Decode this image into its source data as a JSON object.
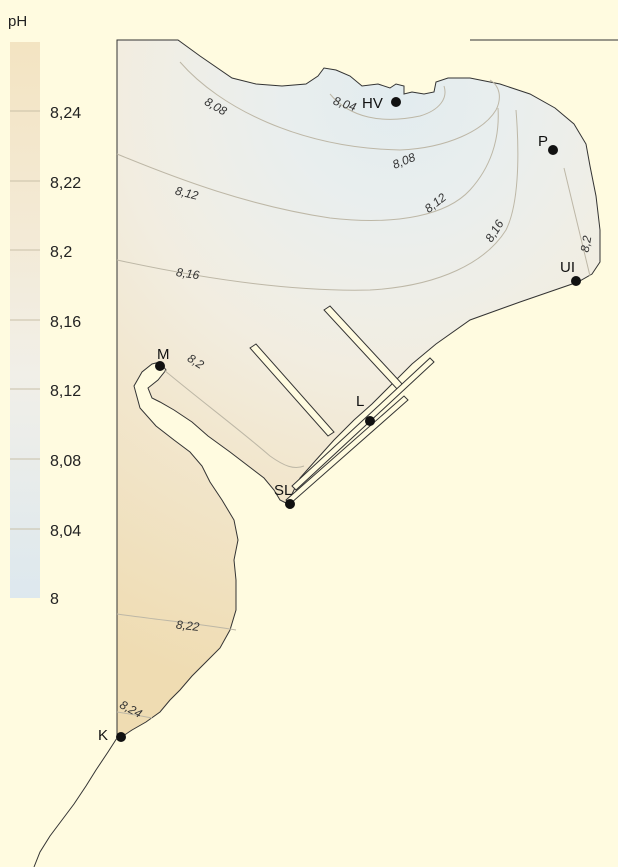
{
  "legend": {
    "title": "pH",
    "ticks": [
      "8,24",
      "8,22",
      "8,2",
      "8,16",
      "8,12",
      "8,08",
      "8,04",
      "8"
    ],
    "colors": {
      "top": "#f3e6c6",
      "bottom": "#dfe9ee"
    }
  },
  "map": {
    "land_color": "#fffbe0",
    "water_top_color": "#e8eef0",
    "water_mid_color": "#f2efe3",
    "water_bottom_color": "#f0e2bf",
    "contour_color": "#b9b2a0",
    "coast_color": "#333333"
  },
  "contours": [
    {
      "label": "8,04"
    },
    {
      "label": "8,08"
    },
    {
      "label": "8,08"
    },
    {
      "label": "8,12"
    },
    {
      "label": "8,12"
    },
    {
      "label": "8,16"
    },
    {
      "label": "8,16"
    },
    {
      "label": "8,2"
    },
    {
      "label": "8,2"
    },
    {
      "label": "8,22"
    },
    {
      "label": "8,24"
    }
  ],
  "stations": [
    {
      "id": "HV",
      "label": "HV"
    },
    {
      "id": "P",
      "label": "P"
    },
    {
      "id": "UI",
      "label": "UI"
    },
    {
      "id": "M",
      "label": "M"
    },
    {
      "id": "L",
      "label": "L"
    },
    {
      "id": "SL",
      "label": "SL"
    },
    {
      "id": "K",
      "label": "K"
    }
  ]
}
